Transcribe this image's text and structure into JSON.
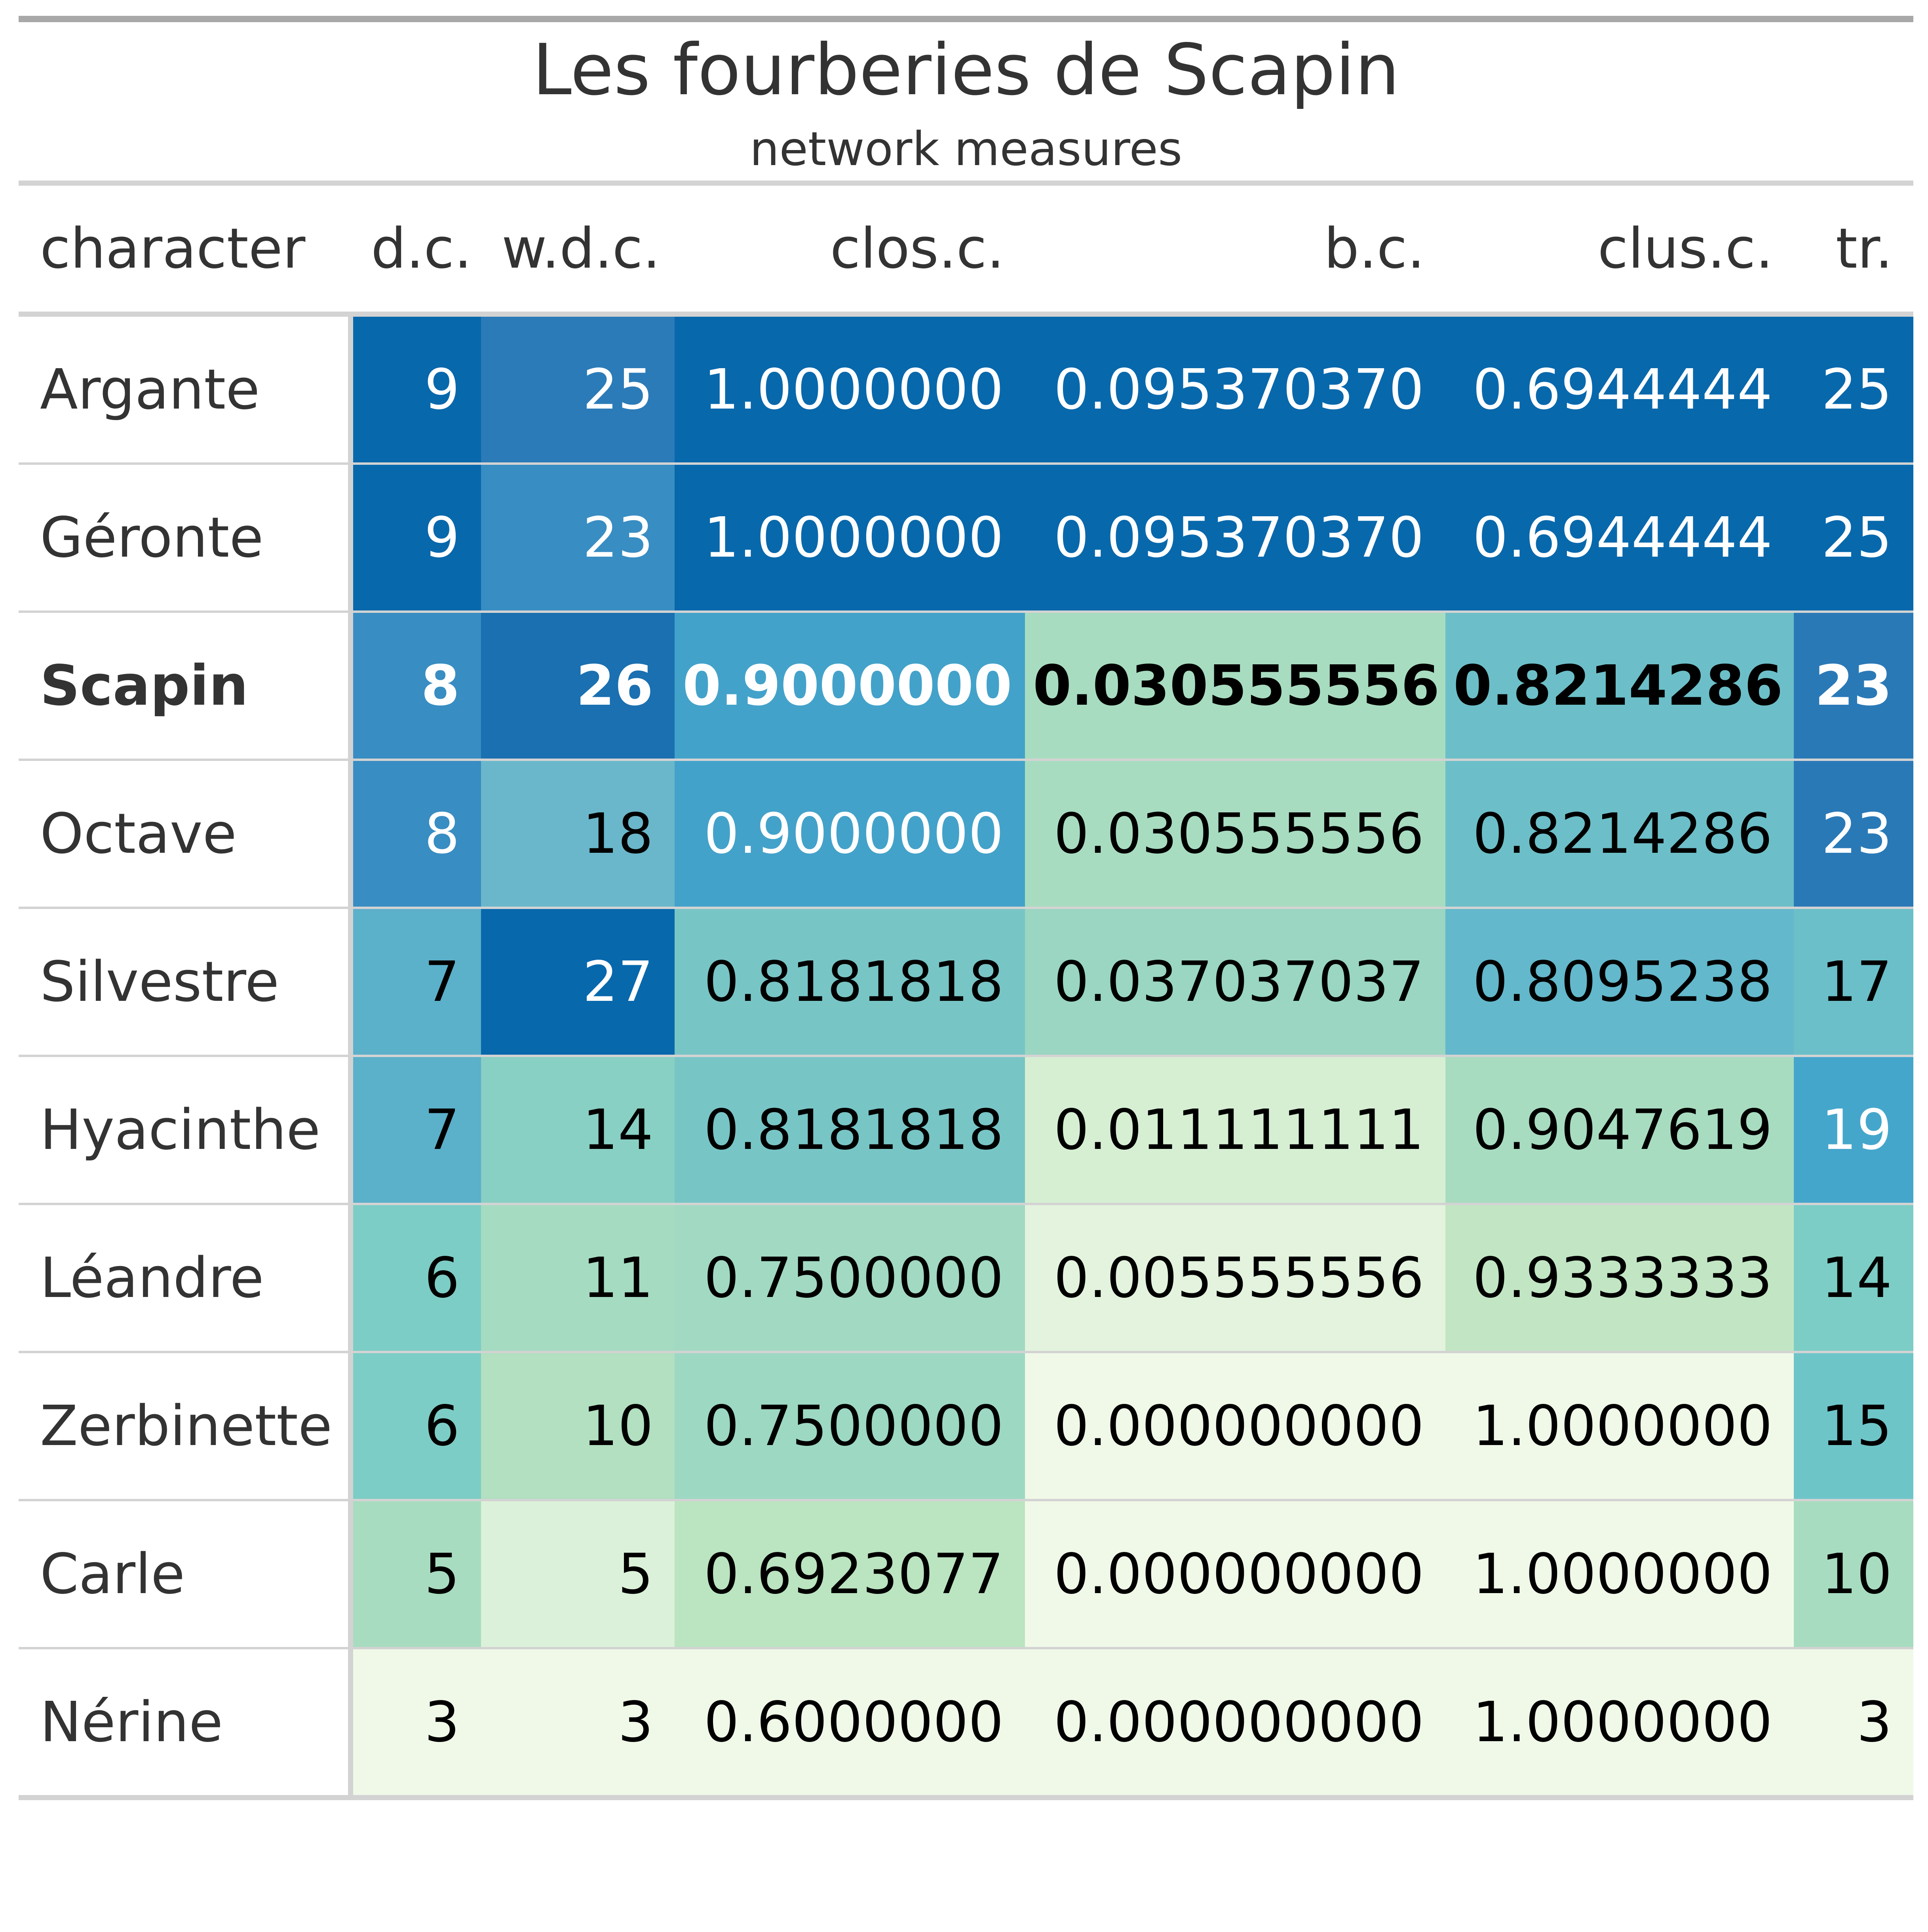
{
  "chart_data": {
    "type": "table",
    "title": "Les fourberies de Scapin",
    "subtitle": "network measures",
    "columns": [
      "character",
      "d.c.",
      "w.d.c.",
      "clos.c.",
      "b.c.",
      "clus.c.",
      "tr."
    ],
    "rows": [
      {
        "character": "Argante",
        "dc": "9",
        "wdc": "25",
        "closc": "1.0000000",
        "bc": "0.095370370",
        "clusc": "0.6944444",
        "tr": "25",
        "bold": false,
        "colors": {
          "dc": "#0868ac",
          "wdc": "#2b7bb8",
          "closc": "#0868ac",
          "bc": "#0868ac",
          "clusc": "#0868ac",
          "tr": "#0868ac"
        },
        "text_colors": {
          "dc": "#ffffff",
          "wdc": "#ffffff",
          "closc": "#ffffff",
          "bc": "#ffffff",
          "clusc": "#ffffff",
          "tr": "#ffffff"
        }
      },
      {
        "character": "Géronte",
        "dc": "9",
        "wdc": "23",
        "closc": "1.0000000",
        "bc": "0.095370370",
        "clusc": "0.6944444",
        "tr": "25",
        "bold": false,
        "colors": {
          "dc": "#0868ac",
          "wdc": "#388dc2",
          "closc": "#0868ac",
          "bc": "#0868ac",
          "clusc": "#0868ac",
          "tr": "#0868ac"
        },
        "text_colors": {
          "dc": "#ffffff",
          "wdc": "#ffffff",
          "closc": "#ffffff",
          "bc": "#ffffff",
          "clusc": "#ffffff",
          "tr": "#ffffff"
        }
      },
      {
        "character": "Scapin",
        "dc": "8",
        "wdc": "26",
        "closc": "0.9000000",
        "bc": "0.030555556",
        "clusc": "0.8214286",
        "tr": "23",
        "bold": true,
        "colors": {
          "dc": "#388dc2",
          "wdc": "#1a70b0",
          "closc": "#43a2ca",
          "bc": "#a8dcc0",
          "clusc": "#6cbfc8",
          "tr": "#2a79b7"
        },
        "text_colors": {
          "dc": "#ffffff",
          "wdc": "#ffffff",
          "closc": "#ffffff",
          "bc": "#000000",
          "clusc": "#000000",
          "tr": "#ffffff"
        }
      },
      {
        "character": "Octave",
        "dc": "8",
        "wdc": "18",
        "closc": "0.9000000",
        "bc": "0.030555556",
        "clusc": "0.8214286",
        "tr": "23",
        "bold": false,
        "colors": {
          "dc": "#388dc2",
          "wdc": "#6ab7cb",
          "closc": "#43a2ca",
          "bc": "#a8dcc0",
          "clusc": "#6cbfc8",
          "tr": "#2a79b7"
        },
        "text_colors": {
          "dc": "#ffffff",
          "wdc": "#000000",
          "closc": "#ffffff",
          "bc": "#000000",
          "clusc": "#000000",
          "tr": "#ffffff"
        }
      },
      {
        "character": "Silvestre",
        "dc": "7",
        "wdc": "27",
        "closc": "0.8181818",
        "bc": "0.037037037",
        "clusc": "0.8095238",
        "tr": "17",
        "bold": false,
        "colors": {
          "dc": "#5bb0ca",
          "wdc": "#0868ac",
          "closc": "#78c5c6",
          "bc": "#9ad6c2",
          "clusc": "#63b8cc",
          "tr": "#6abfc9"
        },
        "text_colors": {
          "dc": "#000000",
          "wdc": "#ffffff",
          "closc": "#000000",
          "bc": "#000000",
          "clusc": "#000000",
          "tr": "#000000"
        }
      },
      {
        "character": "Hyacinthe",
        "dc": "7",
        "wdc": "14",
        "closc": "0.8181818",
        "bc": "0.011111111",
        "clusc": "0.9047619",
        "tr": "19",
        "bold": false,
        "colors": {
          "dc": "#5bb0ca",
          "wdc": "#88d0c3",
          "closc": "#78c5c6",
          "bc": "#d6efd3",
          "clusc": "#a8dcc0",
          "tr": "#45a6cc"
        },
        "text_colors": {
          "dc": "#000000",
          "wdc": "#000000",
          "closc": "#000000",
          "bc": "#000000",
          "clusc": "#000000",
          "tr": "#ffffff"
        }
      },
      {
        "character": "Léandre",
        "dc": "6",
        "wdc": "11",
        "closc": "0.7500000",
        "bc": "0.005555556",
        "clusc": "0.9333333",
        "tr": "14",
        "bold": false,
        "colors": {
          "dc": "#7ccdc5",
          "wdc": "#a5dbc1",
          "closc": "#a2d9c2",
          "bc": "#e3f3de",
          "clusc": "#c2e6c4",
          "tr": "#7ccdc5"
        },
        "text_colors": {
          "dc": "#000000",
          "wdc": "#000000",
          "closc": "#000000",
          "bc": "#000000",
          "clusc": "#000000",
          "tr": "#000000"
        }
      },
      {
        "character": "Zerbinette",
        "dc": "6",
        "wdc": "10",
        "closc": "0.7500000",
        "bc": "0.000000000",
        "clusc": "1.0000000",
        "tr": "15",
        "bold": false,
        "colors": {
          "dc": "#7ccdc5",
          "wdc": "#b2e0c0",
          "closc": "#9dd8c3",
          "bc": "#f0f9e8",
          "clusc": "#f0f9e8",
          "tr": "#6ec5c8"
        },
        "text_colors": {
          "dc": "#000000",
          "wdc": "#000000",
          "closc": "#000000",
          "bc": "#000000",
          "clusc": "#000000",
          "tr": "#000000"
        }
      },
      {
        "character": "Carle",
        "dc": "5",
        "wdc": "5",
        "closc": "0.6923077",
        "bc": "0.000000000",
        "clusc": "1.0000000",
        "tr": "10",
        "bold": false,
        "colors": {
          "dc": "#a8dcc0",
          "wdc": "#dcf1d9",
          "closc": "#bbe4c0",
          "bc": "#f0f9e8",
          "clusc": "#f0f9e8",
          "tr": "#a8dcc0"
        },
        "text_colors": {
          "dc": "#000000",
          "wdc": "#000000",
          "closc": "#000000",
          "bc": "#000000",
          "clusc": "#000000",
          "tr": "#000000"
        }
      },
      {
        "character": "Nérine",
        "dc": "3",
        "wdc": "3",
        "closc": "0.6000000",
        "bc": "0.000000000",
        "clusc": "1.0000000",
        "tr": "3",
        "bold": false,
        "colors": {
          "dc": "#f0f9e8",
          "wdc": "#f0f9e8",
          "closc": "#f0f9e8",
          "bc": "#f0f9e8",
          "clusc": "#f0f9e8",
          "tr": "#f0f9e8"
        },
        "text_colors": {
          "dc": "#000000",
          "wdc": "#000000",
          "closc": "#000000",
          "bc": "#000000",
          "clusc": "#000000",
          "tr": "#000000"
        }
      }
    ]
  }
}
